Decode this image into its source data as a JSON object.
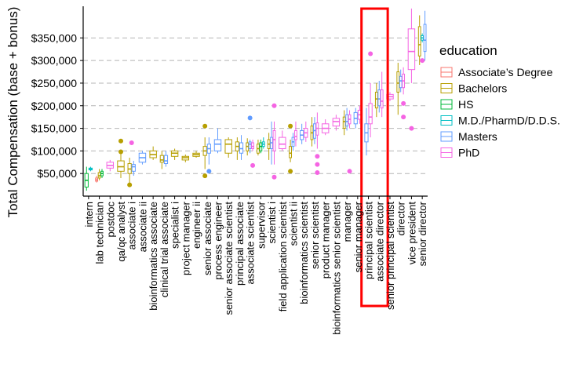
{
  "chart_data": {
    "type": "boxplot",
    "title": "",
    "xlabel": "",
    "ylabel": "Total Compensation (base + bonus)",
    "ylim": [
      0,
      420000
    ],
    "yticks": [
      50000,
      100000,
      150000,
      200000,
      250000,
      300000,
      350000
    ],
    "ytick_labels": [
      "$50,000",
      "$100,000",
      "$150,000",
      "$200,000",
      "$250,000",
      "$300,000",
      "$350,000"
    ],
    "grid": "horizontal-dashed",
    "legend": {
      "title": "education",
      "placement": "right",
      "entries": [
        {
          "key": "AD",
          "label": "Associate’s Degree",
          "color": "#F8766D"
        },
        {
          "key": "BA",
          "label": "Bachelors",
          "color": "#B79F00"
        },
        {
          "key": "HS",
          "label": "HS",
          "color": "#00BA38"
        },
        {
          "key": "MD",
          "label": "M.D./PharmD/D.D.S.",
          "color": "#00BFC4"
        },
        {
          "key": "MS",
          "label": "Masters",
          "color": "#619CFF"
        },
        {
          "key": "PHD",
          "label": "PhD",
          "color": "#F564E3"
        }
      ]
    },
    "annotation": {
      "type": "highlight-box",
      "color": "#FF0000",
      "categories": [
        "principal scientist",
        "associate director"
      ]
    },
    "categories": [
      "intern",
      "lab technician",
      "postdoc",
      "qa/qc analyst",
      "associate i",
      "associate ii",
      "bioinformatics associate",
      "clinical trial associate",
      "specialist i",
      "project manager",
      "engineer ii",
      "senior associate",
      "process engineer",
      "senior associate scientist",
      "principal associate",
      "associate scientist",
      "supervisor",
      "scientist i",
      "field application scientist",
      "scientist ii",
      "bioinformatics scientist",
      "senior scientist",
      "product manager",
      "bioinformatics senior scientist",
      "manager",
      "senior manager",
      "principal scientist",
      "associate director",
      "senior principal scientist",
      "director",
      "vice president",
      "senior director"
    ],
    "boxes": [
      {
        "cat": 0,
        "edu": "HS",
        "min": 12000,
        "q1": 20000,
        "med": 35000,
        "q3": 50000,
        "max": 65000
      },
      {
        "cat": 0,
        "edu": "MD",
        "min": 55000,
        "q1": 58000,
        "med": 60000,
        "q3": 62000,
        "max": 65000
      },
      {
        "cat": 1,
        "edu": "AD",
        "min": 30000,
        "q1": 33000,
        "med": 36000,
        "q3": 40000,
        "max": 45000
      },
      {
        "cat": 1,
        "edu": "BA",
        "min": 35000,
        "q1": 40000,
        "med": 45000,
        "q3": 52000,
        "max": 60000
      },
      {
        "cat": 1,
        "edu": "HS",
        "min": 40000,
        "q1": 45000,
        "med": 50000,
        "q3": 55000,
        "max": 60000
      },
      {
        "cat": 2,
        "edu": "PHD",
        "min": 55000,
        "q1": 62000,
        "med": 68000,
        "q3": 75000,
        "max": 80000
      },
      {
        "cat": 3,
        "edu": "BA",
        "min": 40000,
        "q1": 55000,
        "med": 65000,
        "q3": 78000,
        "max": 95000
      },
      {
        "cat": 4,
        "edu": "BA",
        "min": 28000,
        "q1": 50000,
        "med": 60000,
        "q3": 72000,
        "max": 85000
      },
      {
        "cat": 4,
        "edu": "MS",
        "min": 45000,
        "q1": 55000,
        "med": 65000,
        "q3": 70000,
        "max": 78000
      },
      {
        "cat": 5,
        "edu": "MS",
        "min": 70000,
        "q1": 75000,
        "med": 85000,
        "q3": 95000,
        "max": 100000
      },
      {
        "cat": 6,
        "edu": "BA",
        "min": 80000,
        "q1": 85000,
        "med": 92000,
        "q3": 100000,
        "max": 110000
      },
      {
        "cat": 7,
        "edu": "BA",
        "min": 60000,
        "q1": 75000,
        "med": 80000,
        "q3": 90000,
        "max": 100000
      },
      {
        "cat": 7,
        "edu": "MS",
        "min": 65000,
        "q1": 72000,
        "med": 78000,
        "q3": 90000,
        "max": 100000
      },
      {
        "cat": 8,
        "edu": "BA",
        "min": 80000,
        "q1": 88000,
        "med": 95000,
        "q3": 100000,
        "max": 105000
      },
      {
        "cat": 9,
        "edu": "BA",
        "min": 75000,
        "q1": 80000,
        "med": 85000,
        "q3": 88000,
        "max": 92000
      },
      {
        "cat": 10,
        "edu": "BA",
        "min": 85000,
        "q1": 88000,
        "med": 92000,
        "q3": 95000,
        "max": 100000
      },
      {
        "cat": 11,
        "edu": "BA",
        "min": 60000,
        "q1": 90000,
        "med": 100000,
        "q3": 110000,
        "max": 130000
      },
      {
        "cat": 11,
        "edu": "MS",
        "min": 70000,
        "q1": 95000,
        "med": 105000,
        "q3": 115000,
        "max": 130000
      },
      {
        "cat": 12,
        "edu": "MS",
        "min": 95000,
        "q1": 100000,
        "med": 115000,
        "q3": 125000,
        "max": 150000
      },
      {
        "cat": 13,
        "edu": "BA",
        "min": 85000,
        "q1": 95000,
        "med": 115000,
        "q3": 125000,
        "max": 130000
      },
      {
        "cat": 14,
        "edu": "BA",
        "min": 80000,
        "q1": 100000,
        "med": 110000,
        "q3": 120000,
        "max": 130000
      },
      {
        "cat": 14,
        "edu": "MS",
        "min": 80000,
        "q1": 95000,
        "med": 105000,
        "q3": 118000,
        "max": 135000
      },
      {
        "cat": 15,
        "edu": "BA",
        "min": 90000,
        "q1": 100000,
        "med": 110000,
        "q3": 118000,
        "max": 128000
      },
      {
        "cat": 15,
        "edu": "MS",
        "min": 95000,
        "q1": 105000,
        "med": 115000,
        "q3": 120000,
        "max": 125000
      },
      {
        "cat": 15,
        "edu": "PHD",
        "min": 100000,
        "q1": 105000,
        "med": 110000,
        "q3": 118000,
        "max": 125000
      },
      {
        "cat": 16,
        "edu": "BA",
        "min": 90000,
        "q1": 95000,
        "med": 105000,
        "q3": 115000,
        "max": 125000
      },
      {
        "cat": 16,
        "edu": "HS",
        "min": 95000,
        "q1": 100000,
        "med": 110000,
        "q3": 118000,
        "max": 125000
      },
      {
        "cat": 16,
        "edu": "MD",
        "min": 105000,
        "q1": 110000,
        "med": 115000,
        "q3": 120000,
        "max": 130000
      },
      {
        "cat": 17,
        "edu": "BA",
        "min": 80000,
        "q1": 105000,
        "med": 115000,
        "q3": 125000,
        "max": 140000
      },
      {
        "cat": 17,
        "edu": "MS",
        "min": 70000,
        "q1": 105000,
        "med": 118000,
        "q3": 130000,
        "max": 165000
      },
      {
        "cat": 17,
        "edu": "PHD",
        "min": 70000,
        "q1": 100000,
        "med": 125000,
        "q3": 145000,
        "max": 165000
      },
      {
        "cat": 18,
        "edu": "PHD",
        "min": 100000,
        "q1": 105000,
        "med": 115000,
        "q3": 130000,
        "max": 145000
      },
      {
        "cat": 19,
        "edu": "BA",
        "min": 75000,
        "q1": 85000,
        "med": 95000,
        "q3": 110000,
        "max": 125000
      },
      {
        "cat": 19,
        "edu": "MS",
        "min": 100000,
        "q1": 110000,
        "med": 120000,
        "q3": 130000,
        "max": 140000
      },
      {
        "cat": 19,
        "edu": "PHD",
        "min": 110000,
        "q1": 125000,
        "med": 132000,
        "q3": 145000,
        "max": 165000
      },
      {
        "cat": 20,
        "edu": "MS",
        "min": 115000,
        "q1": 125000,
        "med": 135000,
        "q3": 145000,
        "max": 160000
      },
      {
        "cat": 20,
        "edu": "PHD",
        "min": 120000,
        "q1": 130000,
        "med": 140000,
        "q3": 150000,
        "max": 165000
      },
      {
        "cat": 21,
        "edu": "BA",
        "min": 110000,
        "q1": 125000,
        "med": 140000,
        "q3": 155000,
        "max": 175000
      },
      {
        "cat": 21,
        "edu": "MS",
        "min": 115000,
        "q1": 128000,
        "med": 145000,
        "q3": 160000,
        "max": 175000
      },
      {
        "cat": 21,
        "edu": "PHD",
        "min": 105000,
        "q1": 135000,
        "med": 150000,
        "q3": 162000,
        "max": 185000
      },
      {
        "cat": 22,
        "edu": "PHD",
        "min": 135000,
        "q1": 140000,
        "med": 150000,
        "q3": 160000,
        "max": 170000
      },
      {
        "cat": 23,
        "edu": "PHD",
        "min": 145000,
        "q1": 155000,
        "med": 165000,
        "q3": 172000,
        "max": 180000
      },
      {
        "cat": 24,
        "edu": "BA",
        "min": 135000,
        "q1": 150000,
        "med": 165000,
        "q3": 175000,
        "max": 190000
      },
      {
        "cat": 24,
        "edu": "MS",
        "min": 145000,
        "q1": 155000,
        "med": 165000,
        "q3": 180000,
        "max": 195000
      },
      {
        "cat": 24,
        "edu": "PHD",
        "min": 150000,
        "q1": 160000,
        "med": 170000,
        "q3": 180000,
        "max": 190000
      },
      {
        "cat": 25,
        "edu": "MS",
        "min": 150000,
        "q1": 160000,
        "med": 172000,
        "q3": 185000,
        "max": 195000
      },
      {
        "cat": 25,
        "edu": "PHD",
        "min": 160000,
        "q1": 170000,
        "med": 180000,
        "q3": 190000,
        "max": 200000
      },
      {
        "cat": 26,
        "edu": "MS",
        "min": 90000,
        "q1": 120000,
        "med": 140000,
        "q3": 160000,
        "max": 195000
      },
      {
        "cat": 26,
        "edu": "PHD",
        "min": 130000,
        "q1": 160000,
        "med": 175000,
        "q3": 205000,
        "max": 250000
      },
      {
        "cat": 27,
        "edu": "BA",
        "min": 175000,
        "q1": 195000,
        "med": 215000,
        "q3": 230000,
        "max": 250000
      },
      {
        "cat": 27,
        "edu": "MS",
        "min": 185000,
        "q1": 200000,
        "med": 215000,
        "q3": 235000,
        "max": 255000
      },
      {
        "cat": 27,
        "edu": "PHD",
        "min": 175000,
        "q1": 195000,
        "med": 210000,
        "q3": 235000,
        "max": 275000
      },
      {
        "cat": 28,
        "edu": "PHD",
        "min": 210000,
        "q1": 215000,
        "med": 220000,
        "q3": 225000,
        "max": 230000
      },
      {
        "cat": 29,
        "edu": "BA",
        "min": 180000,
        "q1": 230000,
        "med": 250000,
        "q3": 275000,
        "max": 295000
      },
      {
        "cat": 29,
        "edu": "MS",
        "min": 230000,
        "q1": 240000,
        "med": 255000,
        "q3": 265000,
        "max": 280000
      },
      {
        "cat": 29,
        "edu": "PHD",
        "min": 225000,
        "q1": 240000,
        "med": 255000,
        "q3": 270000,
        "max": 285000
      },
      {
        "cat": 30,
        "edu": "PHD",
        "min": 250000,
        "q1": 280000,
        "med": 320000,
        "q3": 370000,
        "max": 415000
      },
      {
        "cat": 31,
        "edu": "BA",
        "min": 290000,
        "q1": 310000,
        "med": 335000,
        "q3": 375000,
        "max": 400000
      },
      {
        "cat": 31,
        "edu": "MD",
        "min": 340000,
        "q1": 345000,
        "med": 350000,
        "q3": 355000,
        "max": 360000
      },
      {
        "cat": 31,
        "edu": "MS",
        "min": 300000,
        "q1": 320000,
        "med": 345000,
        "q3": 380000,
        "max": 410000
      }
    ],
    "outliers": [
      {
        "cat": 3,
        "edu": "BA",
        "value": 122000
      },
      {
        "cat": 3,
        "edu": "BA",
        "value": 98000
      },
      {
        "cat": 4,
        "edu": "PHD",
        "value": 118000
      },
      {
        "cat": 4,
        "edu": "BA",
        "value": 25000
      },
      {
        "cat": 11,
        "edu": "BA",
        "value": 155000
      },
      {
        "cat": 11,
        "edu": "BA",
        "value": 45000
      },
      {
        "cat": 11,
        "edu": "MS",
        "value": 55000
      },
      {
        "cat": 15,
        "edu": "MS",
        "value": 173000
      },
      {
        "cat": 15,
        "edu": "PHD",
        "value": 68000
      },
      {
        "cat": 17,
        "edu": "PHD",
        "value": 200000
      },
      {
        "cat": 17,
        "edu": "PHD",
        "value": 42000
      },
      {
        "cat": 19,
        "edu": "BA",
        "value": 155000
      },
      {
        "cat": 19,
        "edu": "BA",
        "value": 55000
      },
      {
        "cat": 21,
        "edu": "PHD",
        "value": 88000
      },
      {
        "cat": 21,
        "edu": "PHD",
        "value": 70000
      },
      {
        "cat": 21,
        "edu": "PHD",
        "value": 52000
      },
      {
        "cat": 24,
        "edu": "PHD",
        "value": 55000
      },
      {
        "cat": 26,
        "edu": "PHD",
        "value": 315000
      },
      {
        "cat": 29,
        "edu": "PHD",
        "value": 205000
      },
      {
        "cat": 29,
        "edu": "PHD",
        "value": 175000
      },
      {
        "cat": 30,
        "edu": "PHD",
        "value": 150000
      },
      {
        "cat": 31,
        "edu": "PHD",
        "value": 300000
      }
    ]
  }
}
